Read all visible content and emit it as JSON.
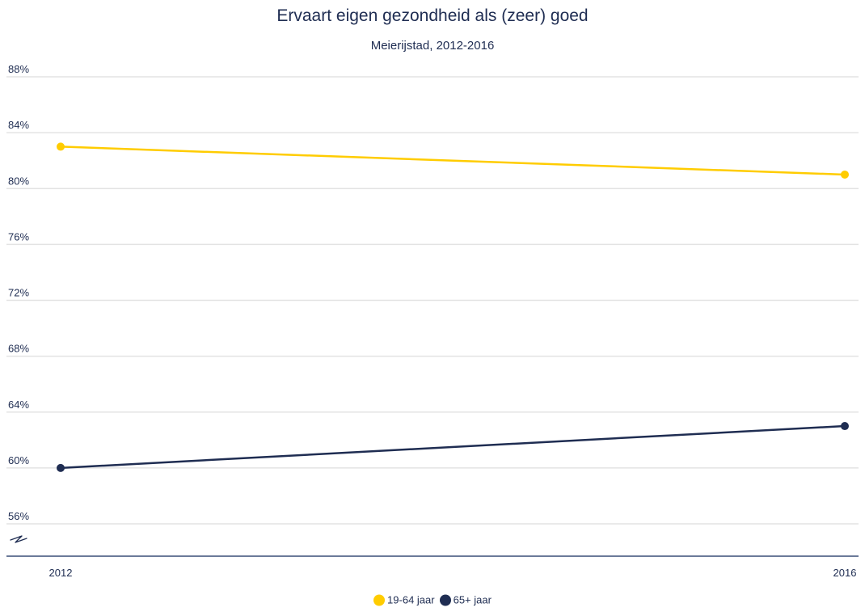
{
  "chart_data": {
    "type": "line",
    "title": "Ervaart eigen gezondheid als (zeer) goed",
    "subtitle": "Meierijstad, 2012-2016",
    "xlabel": "",
    "ylabel": "",
    "x": [
      "2012",
      "2016"
    ],
    "ylim": [
      54,
      88
    ],
    "ytick_values": [
      56,
      60,
      64,
      68,
      72,
      76,
      80,
      84,
      88
    ],
    "ytick_labels": [
      "56%",
      "60%",
      "64%",
      "68%",
      "72%",
      "76%",
      "80%",
      "84%",
      "88%"
    ],
    "axis_break": true,
    "grid": true,
    "legend_position": "bottom",
    "series": [
      {
        "name": "19-64 jaar",
        "values": [
          83,
          81
        ],
        "color": "#ffcc00"
      },
      {
        "name": "65+ jaar",
        "values": [
          60,
          63
        ],
        "color": "#1f2d52"
      }
    ]
  }
}
